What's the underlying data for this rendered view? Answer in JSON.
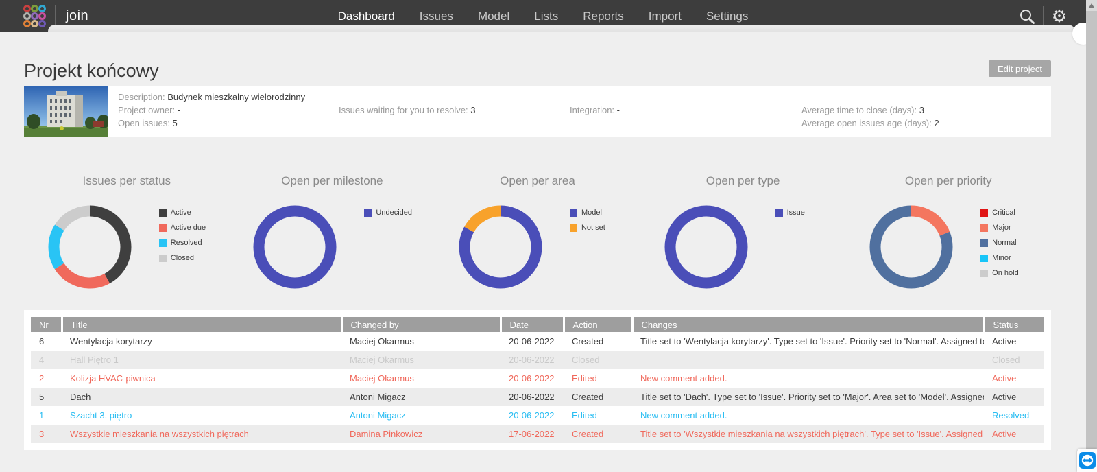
{
  "navbar": {
    "brand": "join",
    "items": [
      {
        "label": "Dashboard",
        "active": true
      },
      {
        "label": "Issues",
        "active": false
      },
      {
        "label": "Model",
        "active": false
      },
      {
        "label": "Lists",
        "active": false
      },
      {
        "label": "Reports",
        "active": false
      },
      {
        "label": "Import",
        "active": false
      },
      {
        "label": "Settings",
        "active": false
      }
    ],
    "logo_colors": [
      "#c94040",
      "#7d9c3c",
      "#31a6cf",
      "#b3b3ae",
      "#8e6cb8",
      "#c9519f",
      "#df8138",
      "#d8b98c",
      "#6d59b4"
    ]
  },
  "page": {
    "title": "Projekt końcowy",
    "edit_button_label": "Edit project"
  },
  "project_info": {
    "description_label": "Description:",
    "description_value": "Budynek mieszkalny wielorodzinny",
    "owner_label": "Project owner:",
    "owner_value": "-",
    "open_issues_label": "Open issues:",
    "open_issues_value": "5",
    "waiting_label": "Issues waiting for you to resolve:",
    "waiting_value": "3",
    "integration_label": "Integration:",
    "integration_value": "-",
    "avg_close_label": "Average time to close (days):",
    "avg_close_value": "3",
    "avg_age_label": "Average open issues age (days):",
    "avg_age_value": "2"
  },
  "chart_data": [
    {
      "type": "donut",
      "title": "Issues per status",
      "legend_position": "right",
      "note": "values are estimated percentages read from arc angles",
      "segments": [
        {
          "label": "Active",
          "value": 42,
          "color": "#3f3f3f"
        },
        {
          "label": "Active due",
          "value": 24,
          "color": "#f0695c"
        },
        {
          "label": "Resolved",
          "value": 18,
          "color": "#29c4f5"
        },
        {
          "label": "Closed",
          "value": 16,
          "color": "#cccccc"
        }
      ]
    },
    {
      "type": "donut",
      "title": "Open per milestone",
      "legend_position": "right",
      "segments": [
        {
          "label": "Undecided",
          "value": 100,
          "color": "#4a4eb8"
        }
      ]
    },
    {
      "type": "donut",
      "title": "Open per area",
      "legend_position": "right",
      "segments": [
        {
          "label": "Model",
          "value": 83,
          "color": "#4a4eb8"
        },
        {
          "label": "Not set",
          "value": 17,
          "color": "#f8a22b"
        }
      ]
    },
    {
      "type": "donut",
      "title": "Open per type",
      "legend_position": "right",
      "segments": [
        {
          "label": "Issue",
          "value": 100,
          "color": "#4a4eb8"
        }
      ]
    },
    {
      "type": "donut",
      "title": "Open per priority",
      "legend_position": "right",
      "segments": [
        {
          "label": "Critical",
          "value": 0,
          "color": "#e01414"
        },
        {
          "label": "Major",
          "value": 19,
          "color": "#f4765f"
        },
        {
          "label": "Normal",
          "value": 81,
          "color": "#50709f"
        },
        {
          "label": "Minor",
          "value": 0,
          "color": "#18c5f8"
        },
        {
          "label": "On hold",
          "value": 0,
          "color": "#cccccc"
        }
      ]
    }
  ],
  "table": {
    "columns": [
      "Nr",
      "Title",
      "Changed by",
      "Date",
      "Action",
      "Changes",
      "Status"
    ],
    "rows": [
      {
        "nr": "6",
        "title": "Wentylacja korytarzy",
        "changed_by": "Maciej Okarmus",
        "date": "20-06-2022",
        "action": "Created",
        "changes": "Title set to 'Wentylacja korytarzy'. Type set to 'Issue'. Priority set to 'Normal'. Assigned to 'An...",
        "status": "Active",
        "style": "normal"
      },
      {
        "nr": "4",
        "title": "Hall Piętro 1",
        "changed_by": "Maciej Okarmus",
        "date": "20-06-2022",
        "action": "Closed",
        "changes": "",
        "status": "Closed",
        "style": "muted"
      },
      {
        "nr": "2",
        "title": "Kolizja HVAC-piwnica",
        "changed_by": "Maciej Okarmus",
        "date": "20-06-2022",
        "action": "Edited",
        "changes": "New comment added.",
        "status": "Active",
        "style": "red"
      },
      {
        "nr": "5",
        "title": "Dach",
        "changed_by": "Antoni Migacz",
        "date": "20-06-2022",
        "action": "Created",
        "changes": "Title set to 'Dach'. Type set to 'Issue'. Priority set to 'Major'. Area set to 'Model'. Assigned to '...",
        "status": "Active",
        "style": "normal"
      },
      {
        "nr": "1",
        "title": "Szacht 3. piętro",
        "changed_by": "Antoni Migacz",
        "date": "20-06-2022",
        "action": "Edited",
        "changes": "New comment added.",
        "status": "Resolved",
        "style": "cyan"
      },
      {
        "nr": "3",
        "title": "Wszystkie mieszkania na wszystkich piętrach",
        "changed_by": "Damina Pinkowicz",
        "date": "17-06-2022",
        "action": "Created",
        "changes": "Title set to 'Wszystkie mieszkania na wszystkich piętrach'. Type set to 'Issue'. Assigned to 'A...",
        "status": "Active",
        "style": "red"
      }
    ]
  },
  "colors": {
    "navbar_bg": "#3d3d3d",
    "page_bg": "#efefef",
    "accent_indigo": "#4a4eb8",
    "salmon": "#f0695c",
    "cyan": "#29c4f5",
    "table_header_bg": "#9e9e9e"
  }
}
